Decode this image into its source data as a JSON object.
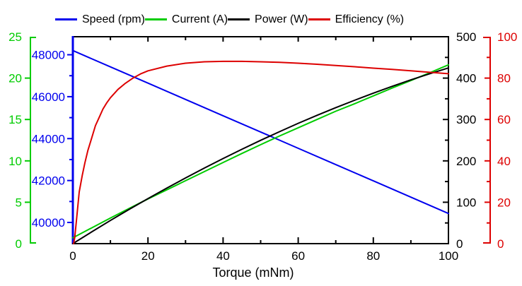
{
  "chart_data": {
    "type": "line",
    "title": "",
    "background": "#ffffff",
    "x_axis": {
      "label": "Torque (mNm)",
      "min": 0,
      "max": 100,
      "major_ticks": [
        0,
        20,
        40,
        60,
        80,
        100
      ],
      "minor_ticks": [
        10,
        30,
        50,
        70,
        90
      ],
      "color": "#000000",
      "grid": false
    },
    "y_axes": {
      "speed": {
        "label": "Speed (rpm)",
        "min": 38990,
        "max": 48860,
        "major_ticks": [
          40000,
          42000,
          44000,
          46000,
          48000
        ],
        "minor_ticks": [
          39000,
          41000,
          43000,
          45000,
          47000
        ],
        "color": "#0000ee",
        "position": "left-spine"
      },
      "current": {
        "label": "Current (A)",
        "min": 0,
        "max": 25,
        "major_ticks": [
          0,
          5,
          10,
          15,
          20,
          25
        ],
        "minor_ticks": [],
        "color": "#00cc00",
        "position": "left-offset"
      },
      "power": {
        "label": "Power (W)",
        "min": 0,
        "max": 500,
        "major_ticks": [
          0,
          100,
          200,
          300,
          400,
          500
        ],
        "minor_ticks": [
          50,
          150,
          250,
          350,
          450
        ],
        "color": "#000000",
        "position": "right-spine"
      },
      "efficiency": {
        "label": "Efficiency (%)",
        "min": 0,
        "max": 100,
        "major_ticks": [
          0,
          20,
          40,
          60,
          80,
          100
        ],
        "minor_ticks": [
          10,
          30,
          50,
          70,
          90
        ],
        "color": "#dd0000",
        "position": "right-offset"
      }
    },
    "legend": {
      "position": "top",
      "entries": [
        "Speed (rpm)",
        "Current (A)",
        "Power (W)",
        "Efficiency (%)"
      ]
    },
    "series": [
      {
        "name": "Speed (rpm)",
        "axis": "speed",
        "color": "#0000ee",
        "x": [
          0,
          10,
          20,
          30,
          40,
          50,
          60,
          70,
          80,
          90,
          100
        ],
        "y": [
          48200,
          47423,
          46646,
          45869,
          45092,
          44315,
          43538,
          42761,
          41984,
          41207,
          40430
        ]
      },
      {
        "name": "Current (A)",
        "axis": "current",
        "color": "#00cc00",
        "x": [
          0,
          5,
          10,
          15,
          20,
          25,
          30,
          35,
          40,
          45,
          50,
          55,
          60,
          65,
          70,
          75,
          80,
          85,
          90,
          95,
          100
        ],
        "y": [
          0.7,
          1.9,
          3.1,
          4.25,
          5.4,
          6.5,
          7.6,
          8.7,
          9.8,
          10.9,
          11.95,
          13.0,
          14.0,
          15.0,
          16.0,
          16.9,
          17.85,
          18.8,
          19.7,
          20.65,
          21.6
        ]
      },
      {
        "name": "Power (W)",
        "axis": "power",
        "color": "#000000",
        "x": [
          0,
          5,
          10,
          15,
          20,
          25,
          30,
          35,
          40,
          45,
          50,
          55,
          60,
          65,
          70,
          75,
          80,
          85,
          90,
          95,
          100
        ],
        "y": [
          0,
          28.3,
          55.9,
          82.7,
          108.8,
          134.1,
          158.7,
          182.6,
          205.7,
          228.0,
          249.7,
          270.5,
          290.7,
          310.0,
          328.7,
          346.5,
          363.7,
          380.0,
          395.7,
          410.5,
          424.6
        ]
      },
      {
        "name": "Efficiency (%)",
        "axis": "efficiency",
        "color": "#dd0000",
        "x": [
          0.2,
          0.5,
          1,
          1.7,
          2.5,
          3.2,
          4,
          5,
          6,
          7,
          8,
          9,
          10,
          12,
          14,
          16,
          18,
          20,
          25,
          30,
          35,
          40,
          45,
          50,
          55,
          60,
          65,
          70,
          75,
          80,
          85,
          90,
          95,
          100
        ],
        "y": [
          0,
          3,
          12,
          25,
          33,
          39,
          45,
          51,
          57,
          61,
          65,
          68,
          70.5,
          74.5,
          77.5,
          80,
          82,
          83.5,
          85.8,
          87.2,
          87.9,
          88.1,
          88.1,
          87.9,
          87.6,
          87.2,
          86.7,
          86.1,
          85.5,
          84.8,
          84.2,
          83.5,
          82.8,
          82.1
        ]
      }
    ]
  }
}
